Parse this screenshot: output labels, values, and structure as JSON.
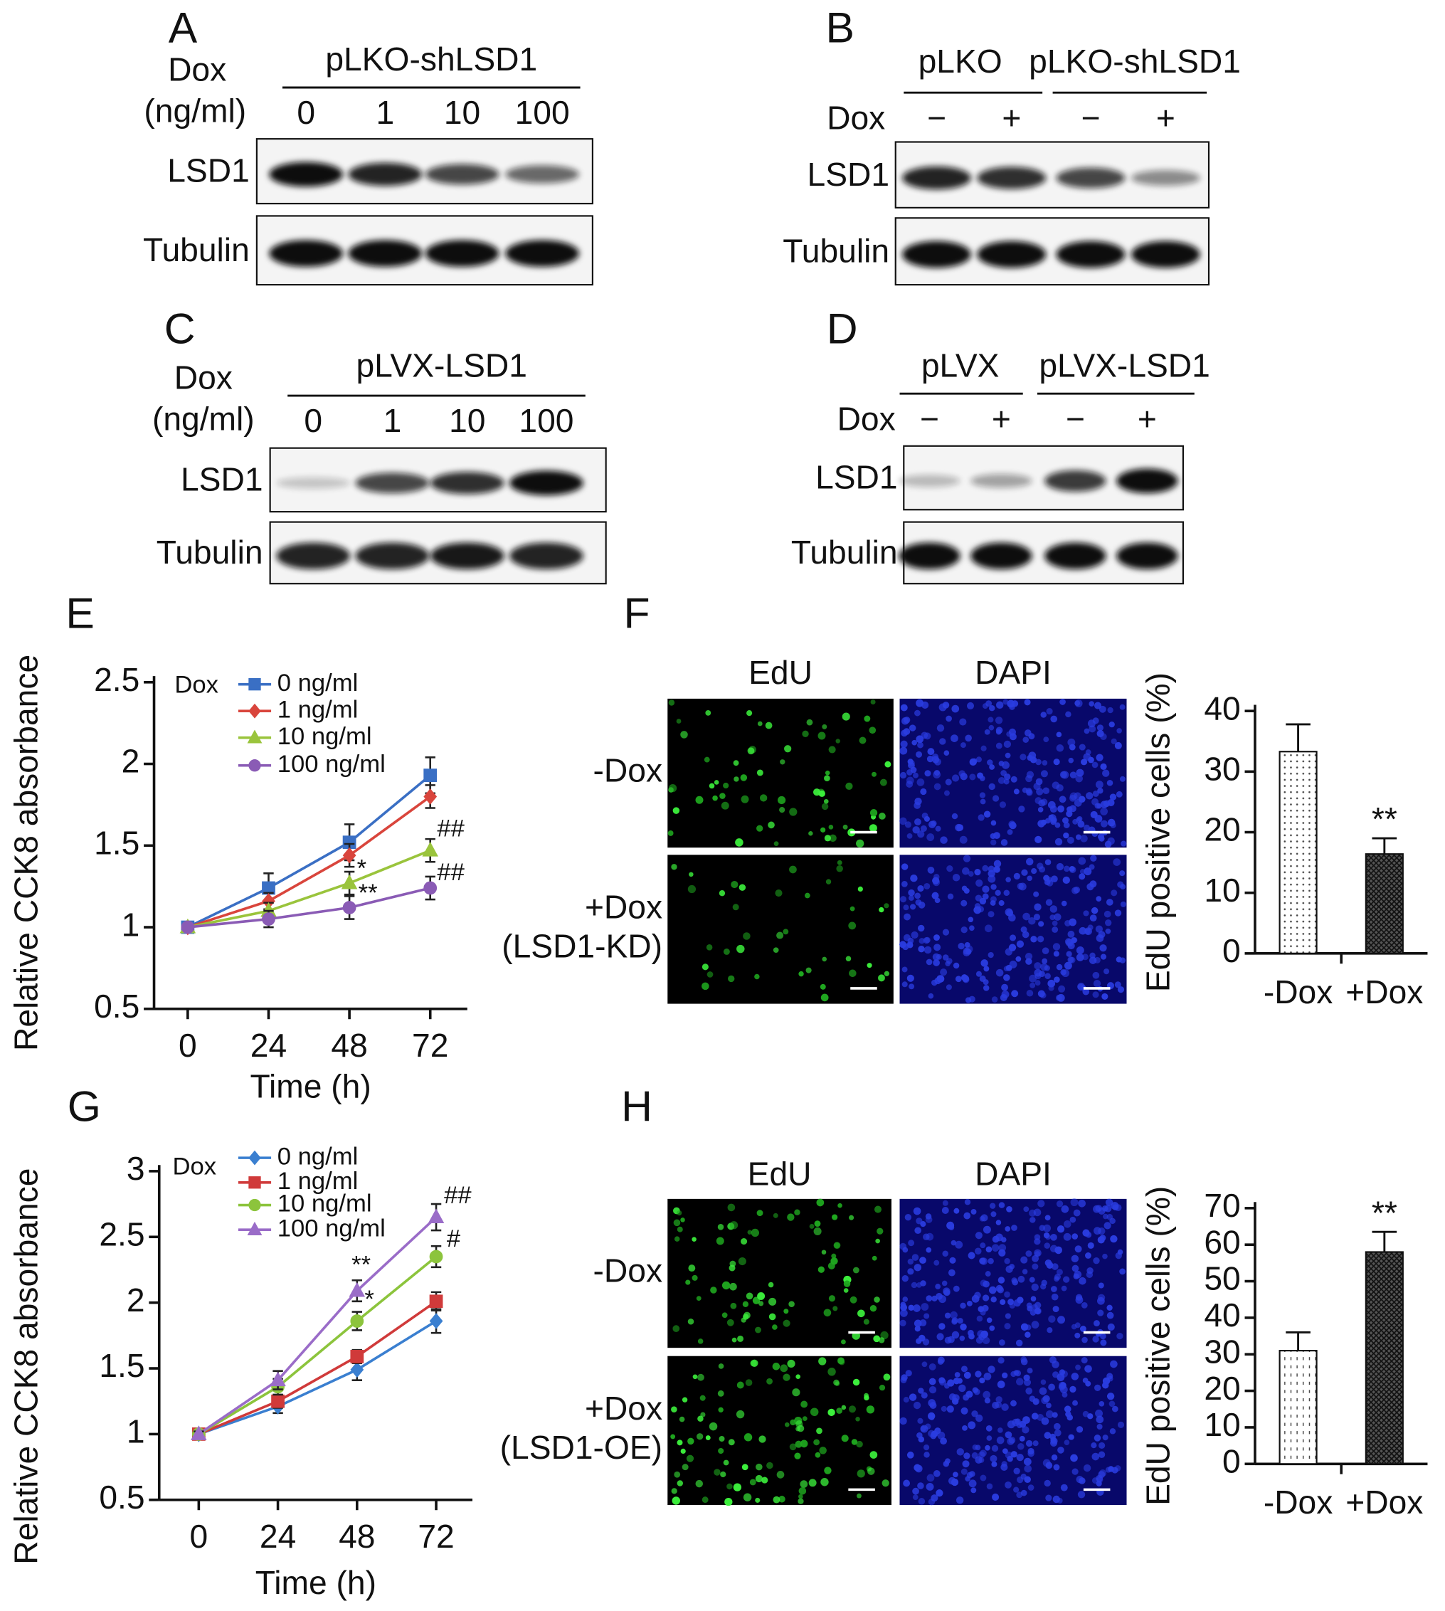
{
  "panel_labels": [
    "A",
    "B",
    "C",
    "D",
    "E",
    "F",
    "G",
    "H"
  ],
  "blots": [
    {
      "dox_label": "Dox",
      "unit_label": "(ng/ml)",
      "groups": [
        "pLKO-shLSD1"
      ],
      "lanes": [
        "0",
        "1",
        "10",
        "100"
      ],
      "rows": [
        "LSD1",
        "Tubulin"
      ]
    },
    {
      "dox_label": "Dox",
      "groups": [
        "pLKO",
        "pLKO-shLSD1"
      ],
      "lanes": [
        "−",
        "+",
        "−",
        "+"
      ],
      "rows": [
        "LSD1",
        "Tubulin"
      ]
    },
    {
      "dox_label": "Dox",
      "unit_label": "(ng/ml)",
      "groups": [
        "pLVX-LSD1"
      ],
      "lanes": [
        "0",
        "1",
        "10",
        "100"
      ],
      "rows": [
        "LSD1",
        "Tubulin"
      ]
    },
    {
      "dox_label": "Dox",
      "groups": [
        "pLVX",
        "pLVX-LSD1"
      ],
      "lanes": [
        "−",
        "+",
        "−",
        "+"
      ],
      "rows": [
        "LSD1",
        "Tubulin"
      ]
    }
  ],
  "micrographs": [
    {
      "columns": [
        "EdU",
        "DAPI"
      ],
      "rows": [
        [
          "-Dox"
        ],
        [
          "+Dox",
          "(LSD1-KD)"
        ]
      ]
    },
    {
      "columns": [
        "EdU",
        "DAPI"
      ],
      "rows": [
        [
          "-Dox"
        ],
        [
          "+Dox",
          "(LSD1-OE)"
        ]
      ]
    }
  ],
  "chart_data": [
    {
      "type": "line",
      "x_label": "Time (h)",
      "y_label": "Relative CCK8 absorbance",
      "legend_title": "Dox",
      "x": [
        0,
        24,
        48,
        72
      ],
      "xlim": [
        -10,
        83
      ],
      "xticks": [
        0,
        24,
        48,
        72
      ],
      "ylim": [
        0.5,
        2.5
      ],
      "yticks": [
        0.5,
        1.0,
        1.5,
        2.0,
        2.5
      ],
      "series": [
        {
          "name": "0 ng/ml",
          "color": "#3a6fc4",
          "marker": "square",
          "values": [
            1.0,
            1.24,
            1.52,
            1.93
          ],
          "errors": [
            0.02,
            0.09,
            0.11,
            0.11
          ]
        },
        {
          "name": "1 ng/ml",
          "color": "#d9453c",
          "marker": "diamond",
          "values": [
            1.0,
            1.16,
            1.44,
            1.8
          ],
          "errors": [
            0.02,
            0.05,
            0.07,
            0.07
          ]
        },
        {
          "name": "10 ng/ml",
          "color": "#9ac43c",
          "marker": "triangle",
          "values": [
            1.0,
            1.1,
            1.27,
            1.47
          ],
          "errors": [
            0.02,
            0.05,
            0.07,
            0.07
          ]
        },
        {
          "name": "100 ng/ml",
          "color": "#8a5bb5",
          "marker": "circle",
          "values": [
            1.0,
            1.05,
            1.12,
            1.24
          ],
          "errors": [
            0.02,
            0.05,
            0.07,
            0.07
          ]
        }
      ],
      "annotations": [
        "*",
        "**",
        "##",
        "##"
      ]
    },
    {
      "type": "bar",
      "y_label": "EdU positive cells (%)",
      "categories": [
        "-Dox",
        "+Dox"
      ],
      "values": [
        33.3,
        16.4
      ],
      "errors": [
        4.5,
        2.6
      ],
      "ylim": [
        0,
        40
      ],
      "yticks": [
        0,
        10,
        20,
        30,
        40
      ],
      "annotations": [
        "**"
      ]
    },
    {
      "type": "line",
      "x_label": "Time (h)",
      "y_label": "Relative CCK8 absorbance",
      "legend_title": "Dox",
      "x": [
        0,
        24,
        48,
        72
      ],
      "xlim": [
        -12,
        83
      ],
      "xticks": [
        0,
        24,
        48,
        72
      ],
      "ylim": [
        0.5,
        3.0
      ],
      "yticks": [
        0.5,
        1.0,
        1.5,
        2.0,
        2.5,
        3.0
      ],
      "series": [
        {
          "name": "0 ng/ml",
          "color": "#3a7fd0",
          "marker": "diamond",
          "values": [
            1.0,
            1.21,
            1.49,
            1.86
          ],
          "errors": [
            0.02,
            0.05,
            0.08,
            0.09
          ]
        },
        {
          "name": "1 ng/ml",
          "color": "#d03a3a",
          "marker": "square",
          "values": [
            1.0,
            1.25,
            1.59,
            2.01
          ],
          "errors": [
            0.02,
            0.05,
            0.05,
            0.07
          ]
        },
        {
          "name": "10 ng/ml",
          "color": "#8cc43c",
          "marker": "circle",
          "values": [
            1.0,
            1.36,
            1.86,
            2.35
          ],
          "errors": [
            0.02,
            0.06,
            0.07,
            0.08
          ]
        },
        {
          "name": "100 ng/ml",
          "color": "#9a6cc8",
          "marker": "triangle",
          "values": [
            1.0,
            1.41,
            2.09,
            2.65
          ],
          "errors": [
            0.02,
            0.07,
            0.08,
            0.1
          ]
        }
      ],
      "annotations": [
        "**",
        "*",
        "##",
        "#"
      ]
    },
    {
      "type": "bar",
      "y_label": "EdU positive cells (%)",
      "categories": [
        "-Dox",
        "+Dox"
      ],
      "values": [
        31,
        58
      ],
      "errors": [
        5,
        5.5
      ],
      "ylim": [
        0,
        70
      ],
      "yticks": [
        0,
        10,
        20,
        30,
        40,
        50,
        60,
        70
      ],
      "annotations": [
        "**"
      ]
    }
  ]
}
